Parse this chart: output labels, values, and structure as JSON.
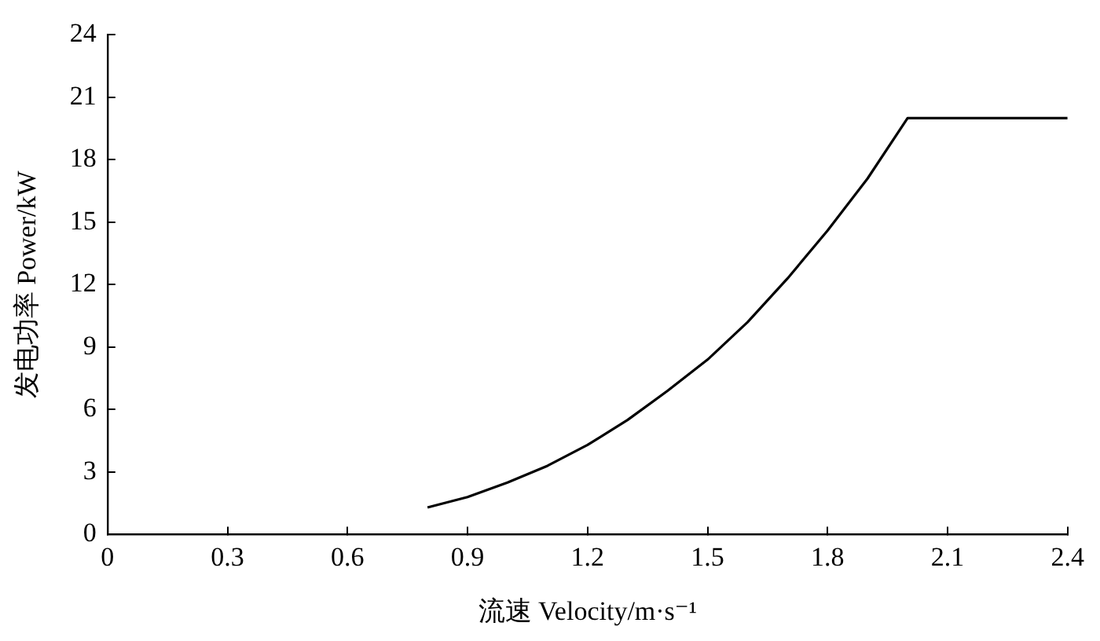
{
  "chart_data": {
    "type": "line",
    "xlabel": "流速 Velocity/m·s⁻¹",
    "ylabel": "发电功率 Power/kW",
    "x": [
      0.8,
      0.9,
      1.0,
      1.1,
      1.2,
      1.3,
      1.4,
      1.5,
      1.6,
      1.7,
      1.8,
      1.9,
      2.0,
      2.4
    ],
    "series": [
      {
        "color": "#000000",
        "values": [
          1.3,
          1.8,
          2.5,
          3.3,
          4.3,
          5.5,
          6.9,
          8.4,
          10.2,
          12.3,
          14.6,
          17.1,
          20,
          20
        ]
      }
    ],
    "xlim": [
      0,
      2.4
    ],
    "xticks": [
      0,
      0.3,
      0.6,
      0.9,
      1.2,
      1.5,
      1.8,
      2.1,
      2.4
    ],
    "ylim": [
      0,
      24
    ],
    "yticks": [
      0,
      3,
      6,
      9,
      12,
      15,
      18,
      21,
      24
    ],
    "grid": false,
    "legend": false,
    "marker": "none",
    "line_style": "solid"
  }
}
